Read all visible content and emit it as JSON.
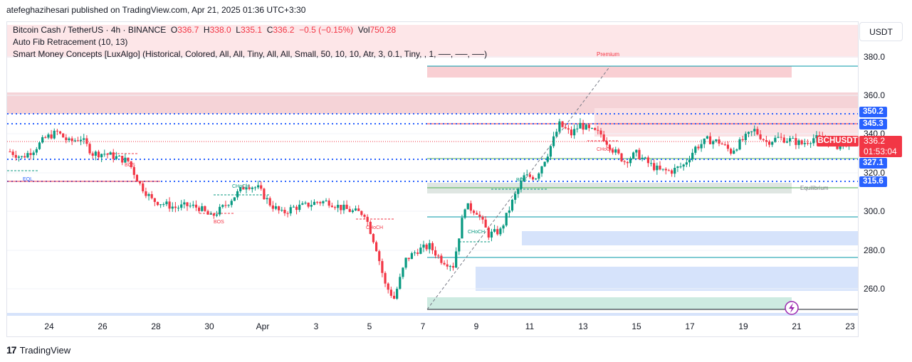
{
  "header": {
    "published_by": "atefeghazihesari published on TradingView.com, Apr 21, 2025 01:36 UTC+3:30"
  },
  "legend": {
    "symbol": "Bitcoin Cash / TetherUS · 4h · BINANCE",
    "o_label": "O",
    "o_value": "336.7",
    "h_label": "H",
    "h_value": "338.0",
    "l_label": "L",
    "l_value": "335.1",
    "c_label": "C",
    "c_value": "336.2",
    "change": "−0.5 (−0.15%)",
    "vol_label": "Vol",
    "vol_value": "750.28",
    "indicator1": "Auto Fib Retracement (10, 13)",
    "indicator2": "Smart Money Concepts [LuxAlgo] (Historical, Colored, All, All, Tiny, All, All, Small, 50, 10, 10, Atr, 3, 0.1, Tiny, , 1, ──, ──, ──)"
  },
  "currency_button": "USDT",
  "price_axis": [
    "380.0",
    "360.0",
    "340.0",
    "320.0",
    "300.0",
    "280.0",
    "260.0"
  ],
  "price_tags": {
    "level_350": "350.2",
    "level_345": "345.3",
    "level_327": "327.1",
    "level_315": "315.6"
  },
  "current": {
    "symbol": "BCHUSDT",
    "price": "336.2",
    "countdown": "01:53:04"
  },
  "date_axis": [
    "24",
    "26",
    "28",
    "30",
    "Apr",
    "3",
    "5",
    "7",
    "9",
    "11",
    "13",
    "15",
    "17",
    "19",
    "21",
    "23"
  ],
  "annotations": {
    "premium": "Premium",
    "equilibrium": "Equilibrium",
    "bos": "BOS",
    "choch": "CHoCH",
    "eqh": "EQL"
  },
  "footer": {
    "brand": "TradingView"
  },
  "colors": {
    "up": "#089981",
    "down": "#f23645",
    "accent": "#2962ff",
    "premium_zone": "#f7c9cd",
    "discount_zone": "#c9d8f7",
    "equilibrium_zone": "#d3ded9"
  },
  "chart_data": {
    "type": "candlestick",
    "symbol": "BCHUSDT",
    "interval": "4h",
    "ylim": [
      245,
      390
    ],
    "key_levels": [
      350.2,
      345.3,
      327.1,
      315.6
    ],
    "last_price": 336.2,
    "trend_path": [
      [
        0,
        331
      ],
      [
        4,
        328
      ],
      [
        8,
        332
      ],
      [
        12,
        338
      ],
      [
        16,
        341
      ],
      [
        20,
        336
      ],
      [
        24,
        338
      ],
      [
        28,
        330
      ],
      [
        32,
        330
      ],
      [
        36,
        328
      ],
      [
        40,
        326
      ],
      [
        44,
        314
      ],
      [
        48,
        306
      ],
      [
        52,
        304
      ],
      [
        56,
        302
      ],
      [
        60,
        303
      ],
      [
        64,
        302
      ],
      [
        68,
        297
      ],
      [
        72,
        302
      ],
      [
        76,
        308
      ],
      [
        80,
        314
      ],
      [
        84,
        312
      ],
      [
        88,
        304
      ],
      [
        92,
        299
      ],
      [
        96,
        302
      ],
      [
        100,
        303
      ],
      [
        104,
        305
      ],
      [
        108,
        305
      ],
      [
        112,
        302
      ],
      [
        116,
        300
      ],
      [
        120,
        299
      ],
      [
        124,
        281
      ],
      [
        127,
        262
      ],
      [
        130,
        255
      ],
      [
        134,
        275
      ],
      [
        138,
        280
      ],
      [
        142,
        282
      ],
      [
        146,
        275
      ],
      [
        150,
        272
      ],
      [
        154,
        303
      ],
      [
        158,
        300
      ],
      [
        162,
        288
      ],
      [
        166,
        290
      ],
      [
        170,
        305
      ],
      [
        174,
        318
      ],
      [
        178,
        318
      ],
      [
        182,
        330
      ],
      [
        186,
        345
      ],
      [
        190,
        340
      ],
      [
        193,
        345
      ],
      [
        196,
        342
      ],
      [
        200,
        340
      ],
      [
        204,
        332
      ],
      [
        208,
        326
      ],
      [
        212,
        330
      ],
      [
        216,
        325
      ],
      [
        220,
        321
      ],
      [
        224,
        321
      ],
      [
        228,
        324
      ],
      [
        232,
        333
      ],
      [
        236,
        337
      ],
      [
        240,
        336
      ],
      [
        244,
        331
      ],
      [
        248,
        337
      ],
      [
        252,
        342
      ],
      [
        256,
        336
      ],
      [
        260,
        338
      ],
      [
        264,
        337
      ],
      [
        268,
        335
      ],
      [
        272,
        338
      ],
      [
        276,
        337
      ],
      [
        280,
        334
      ],
      [
        284,
        336
      ]
    ]
  }
}
